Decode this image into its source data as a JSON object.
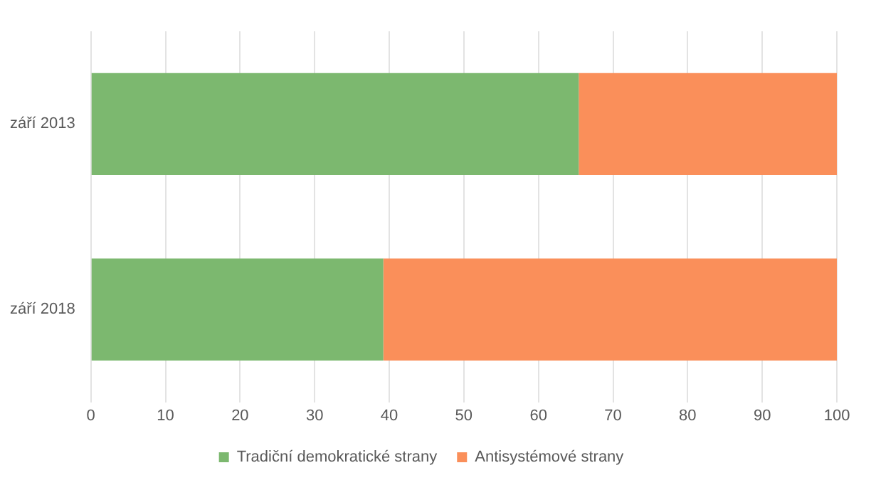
{
  "chart_data": {
    "type": "bar",
    "orientation": "horizontal",
    "stacked": true,
    "categories": [
      "září 2013",
      "září 2018"
    ],
    "series": [
      {
        "name": "Tradiční demokratické strany",
        "color": "#7cb86f",
        "values": [
          65.4,
          39.2
        ]
      },
      {
        "name": "Antisystémové strany",
        "color": "#fa8f5a",
        "values": [
          34.6,
          60.8
        ]
      }
    ],
    "xlim": [
      0,
      100
    ],
    "xticks": [
      0,
      10,
      20,
      30,
      40,
      50,
      60,
      70,
      80,
      90,
      100
    ],
    "grid": "x",
    "legend": "bottom"
  }
}
